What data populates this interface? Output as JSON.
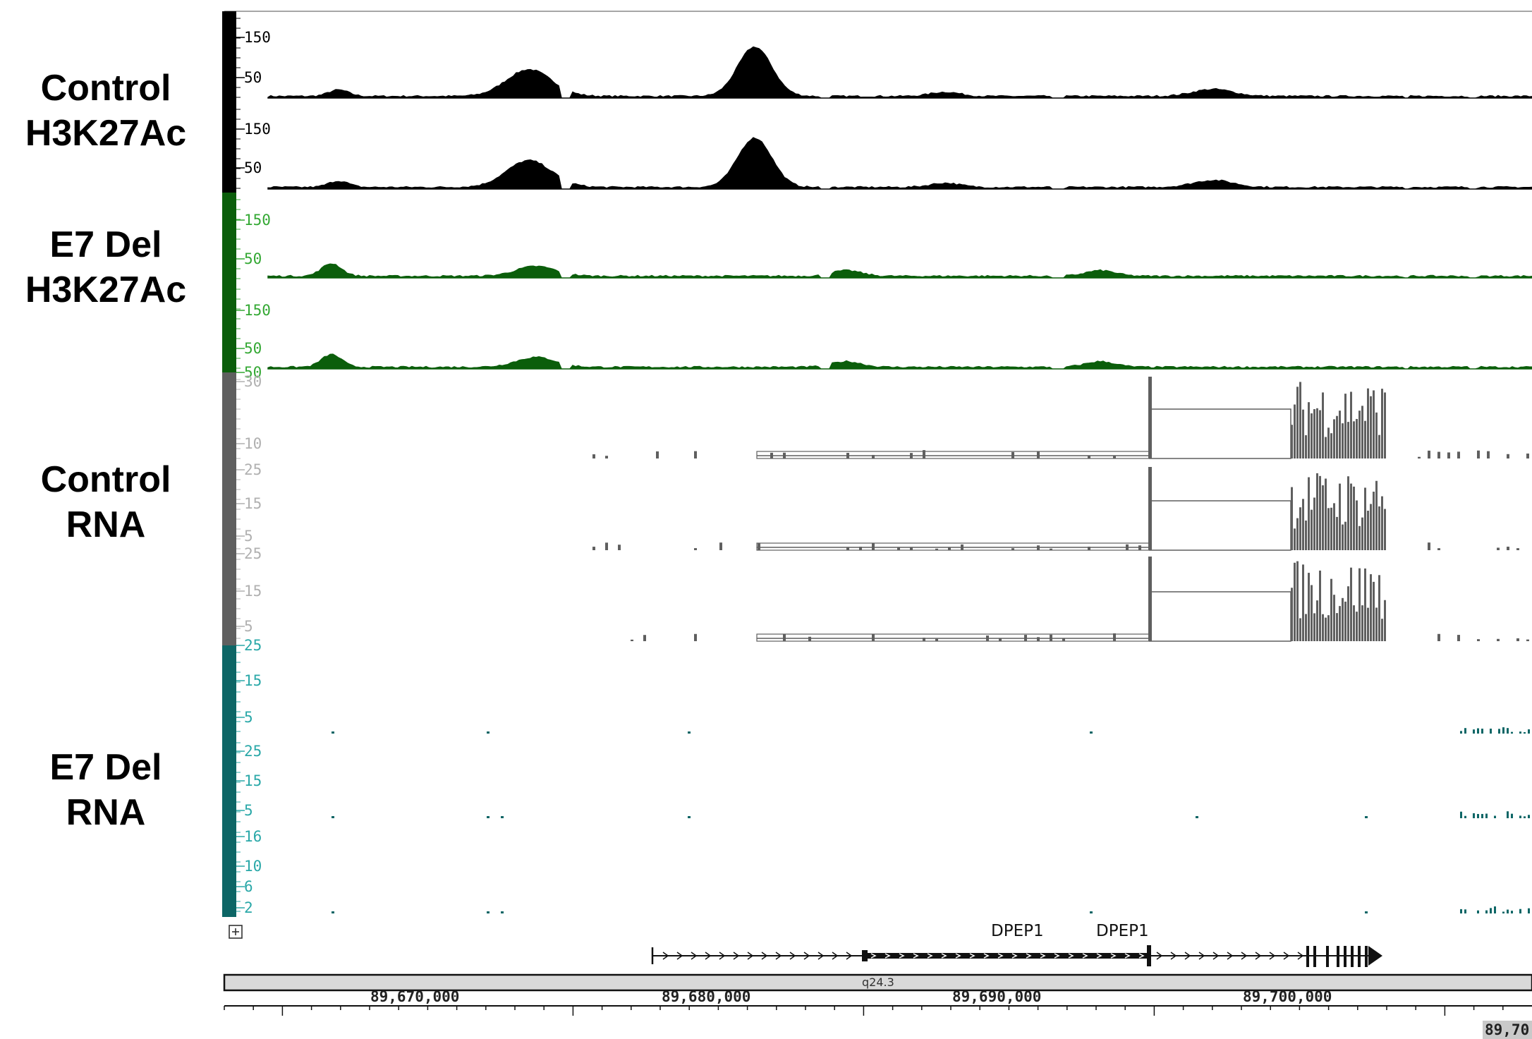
{
  "groups": [
    {
      "id": "control-h3k27ac",
      "lines": [
        "Control",
        "H3K27Ac"
      ]
    },
    {
      "id": "e7del-h3k27ac",
      "lines": [
        "E7 Del",
        "H3K27Ac"
      ]
    },
    {
      "id": "control-rna",
      "lines": [
        "Control",
        "RNA"
      ]
    },
    {
      "id": "e7del-rna",
      "lines": [
        "E7 Del",
        "RNA"
      ]
    }
  ],
  "colors": {
    "black": "#000000",
    "green": "#0b5e0b",
    "green_text": "#33a833",
    "gray": "#5f5f5f",
    "gray_text": "#b0b0b0",
    "teal": "#0d6666",
    "teal_text": "#2aa8a8"
  },
  "tracks": [
    {
      "id": "ctrl-k27-1",
      "color": "black",
      "labels": [
        "150",
        "50"
      ]
    },
    {
      "id": "ctrl-k27-2",
      "color": "black",
      "labels": [
        "150",
        "50"
      ]
    },
    {
      "id": "e7-k27-1",
      "color": "green",
      "labels": [
        "150",
        "50"
      ]
    },
    {
      "id": "e7-k27-2",
      "color": "green",
      "labels": [
        "150",
        "50",
        "50"
      ]
    },
    {
      "id": "ctrl-rna-1",
      "color": "gray",
      "labels": [
        "30",
        "10"
      ]
    },
    {
      "id": "ctrl-rna-2",
      "color": "gray",
      "labels": [
        "25",
        "15",
        "5"
      ]
    },
    {
      "id": "ctrl-rna-3",
      "color": "gray",
      "labels": [
        "25",
        "15",
        "5"
      ]
    },
    {
      "id": "e7-rna-1",
      "color": "teal",
      "labels": [
        "25",
        "15",
        "5"
      ]
    },
    {
      "id": "e7-rna-2",
      "color": "teal",
      "labels": [
        "25",
        "15",
        "5"
      ]
    },
    {
      "id": "e7-rna-3",
      "color": "teal",
      "labels": [
        "16",
        "10",
        "6",
        "2"
      ]
    }
  ],
  "genes": {
    "labels": [
      "DPEP1",
      "DPEP1"
    ]
  },
  "expand_icon": "plus-box-icon",
  "ideogram": {
    "band": "q24.3"
  },
  "ruler": {
    "labels": [
      "89,670,000",
      "89,680,000",
      "89,690,000",
      "89,700,000"
    ],
    "edge_label": "89,70"
  }
}
